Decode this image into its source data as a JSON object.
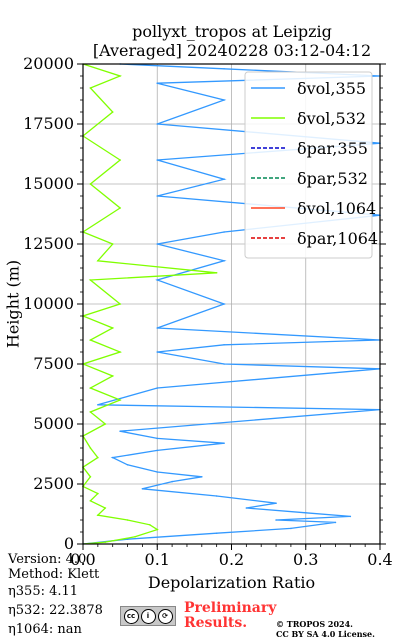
{
  "header": {
    "title_line1": "pollyxt_tropos at Leipzig",
    "title_line2": "[Averaged] 20240228 03:12-04:12"
  },
  "footer": {
    "version": "Version: 4.0",
    "method": "Method: Klett",
    "eta355": "η355:   4.11",
    "eta532": "η532: 22.3878",
    "eta1064": "η1064:    nan",
    "preliminary": "Preliminary",
    "results": "Results.",
    "copyright1": "© TROPOS 2024.",
    "copyright2": "CC BY SA 4.0 License.",
    "license_icons": [
      "cc-icon",
      "by-icon",
      "sa-icon"
    ]
  },
  "chart_data": {
    "type": "line",
    "xlabel": "Depolarization Ratio",
    "ylabel": "Height (m)",
    "xlim": [
      0,
      0.4
    ],
    "ylim": [
      0,
      20000
    ],
    "xticks": [
      "0.0",
      "0.1",
      "0.2",
      "0.3",
      "0.4"
    ],
    "xtick_values": [
      0,
      0.1,
      0.2,
      0.3,
      0.4
    ],
    "yticks": [
      "0",
      "2500",
      "5000",
      "7500",
      "10000",
      "12500",
      "15000",
      "17500",
      "20000"
    ],
    "ytick_values": [
      0,
      2500,
      5000,
      7500,
      10000,
      12500,
      15000,
      17500,
      20000
    ],
    "grid": true,
    "legend_position": "top-right",
    "series": [
      {
        "name": "δvol,355",
        "color": "#3399ff",
        "style": "solid",
        "points": [
          [
            0.0,
            0
          ],
          [
            0.06,
            200
          ],
          [
            0.18,
            450
          ],
          [
            0.28,
            650
          ],
          [
            0.34,
            900
          ],
          [
            0.26,
            1000
          ],
          [
            0.36,
            1150
          ],
          [
            0.3,
            1300
          ],
          [
            0.22,
            1500
          ],
          [
            0.26,
            1700
          ],
          [
            0.18,
            2000
          ],
          [
            0.08,
            2300
          ],
          [
            0.12,
            2600
          ],
          [
            0.16,
            2800
          ],
          [
            0.1,
            3000
          ],
          [
            0.06,
            3300
          ],
          [
            0.04,
            3600
          ],
          [
            0.1,
            3900
          ],
          [
            0.19,
            4200
          ],
          [
            0.1,
            4400
          ],
          [
            0.05,
            4700
          ],
          [
            0.4,
            5600
          ],
          [
            0.02,
            5800
          ],
          [
            0.1,
            6500
          ],
          [
            0.4,
            7300
          ],
          [
            0.19,
            7500
          ],
          [
            0.1,
            8000
          ],
          [
            0.19,
            8300
          ],
          [
            0.4,
            8500
          ],
          [
            0.1,
            9000
          ],
          [
            0.19,
            10000
          ],
          [
            0.1,
            11000
          ],
          [
            0.19,
            11800
          ],
          [
            0.1,
            12500
          ],
          [
            0.19,
            13000
          ],
          [
            0.4,
            13700
          ],
          [
            0.1,
            14500
          ],
          [
            0.19,
            15200
          ],
          [
            0.1,
            16000
          ],
          [
            0.4,
            16700
          ],
          [
            0.1,
            17500
          ],
          [
            0.19,
            18500
          ],
          [
            0.1,
            19200
          ],
          [
            0.4,
            19500
          ],
          [
            0.19,
            19800
          ],
          [
            0.05,
            20000
          ]
        ]
      },
      {
        "name": "δvol,532",
        "color": "#80ff00",
        "style": "solid",
        "points": [
          [
            0.0,
            0
          ],
          [
            0.03,
            80
          ],
          [
            0.07,
            300
          ],
          [
            0.1,
            600
          ],
          [
            0.09,
            800
          ],
          [
            0.06,
            1000
          ],
          [
            0.02,
            1200
          ],
          [
            0.03,
            1500
          ],
          [
            0.01,
            1800
          ],
          [
            0.02,
            2100
          ],
          [
            0.0,
            2400
          ],
          [
            0.01,
            2800
          ],
          [
            0.0,
            3200
          ],
          [
            0.02,
            3600
          ],
          [
            0.01,
            4000
          ],
          [
            0.0,
            4500
          ],
          [
            0.03,
            5000
          ],
          [
            0.01,
            5500
          ],
          [
            0.05,
            6000
          ],
          [
            0.01,
            6500
          ],
          [
            0.04,
            7000
          ],
          [
            0.0,
            7500
          ],
          [
            0.05,
            8000
          ],
          [
            0.01,
            8500
          ],
          [
            0.04,
            9000
          ],
          [
            0.0,
            9500
          ],
          [
            0.05,
            10000
          ],
          [
            0.01,
            11000
          ],
          [
            0.18,
            11300
          ],
          [
            0.02,
            11800
          ],
          [
            0.04,
            12500
          ],
          [
            0.0,
            13000
          ],
          [
            0.05,
            14000
          ],
          [
            0.01,
            15000
          ],
          [
            0.05,
            16000
          ],
          [
            0.0,
            17000
          ],
          [
            0.04,
            18000
          ],
          [
            0.01,
            19000
          ],
          [
            0.05,
            19500
          ],
          [
            0.0,
            20000
          ]
        ]
      },
      {
        "name": "δpar,355",
        "color": "#0000cc",
        "style": "dashed",
        "points": []
      },
      {
        "name": "δpar,532",
        "color": "#008855",
        "style": "dashed",
        "points": []
      },
      {
        "name": "δvol,1064",
        "color": "#ff4422",
        "style": "solid",
        "points": []
      },
      {
        "name": "δpar,1064",
        "color": "#dd0000",
        "style": "dashed",
        "points": []
      }
    ]
  }
}
